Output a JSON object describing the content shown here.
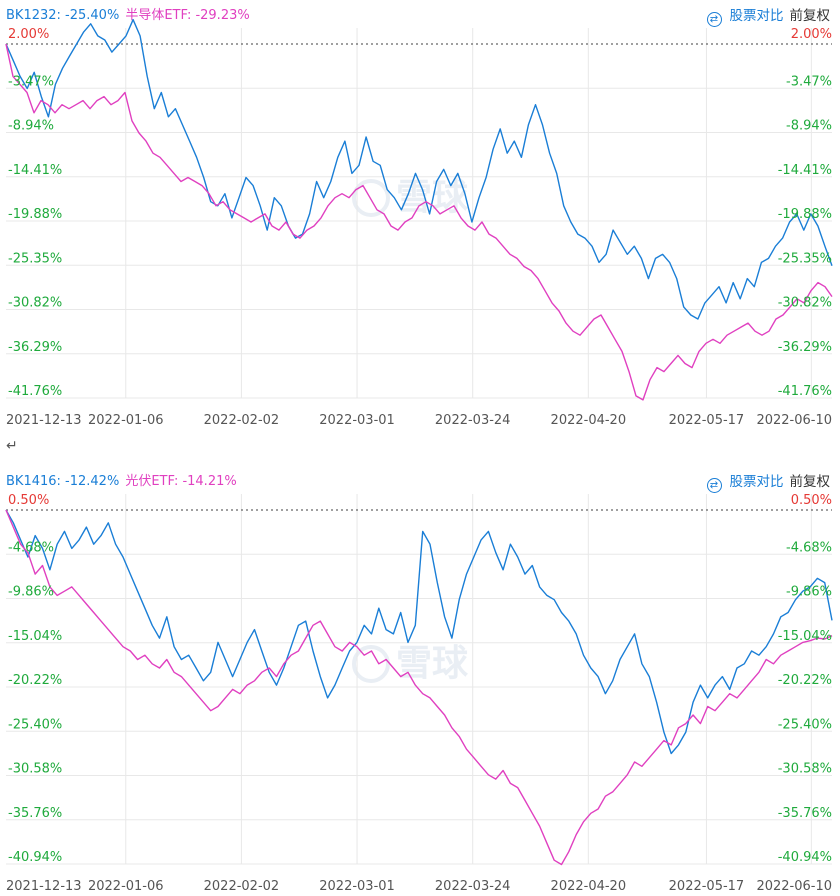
{
  "compare_label": "股票对比",
  "adjust_label": "前复权",
  "return_glyph": "↵",
  "watermark": "雪球",
  "colors": {
    "series1": "#1a7ed6",
    "series2": "#e040c0",
    "up": "#e53935",
    "down": "#1faa3c",
    "grid": "#e8e8e8",
    "baseline": "#666666"
  },
  "icons": {
    "compare": "swap-icon"
  },
  "chart_data": [
    {
      "type": "line",
      "legend": [
        {
          "name": "BK1232",
          "value": "-25.40%"
        },
        {
          "name": "半导体ETF",
          "value": "-29.23%"
        }
      ],
      "yticks": [
        "2.00%",
        "-3.47%",
        "-8.94%",
        "-14.41%",
        "-19.88%",
        "-25.35%",
        "-30.82%",
        "-36.29%",
        "-41.76%"
      ],
      "ylim": [
        -41.76,
        2.0
      ],
      "xticks": [
        "2021-12-13",
        "2022-01-06",
        "2022-02-02",
        "2022-03-01",
        "2022-03-24",
        "2022-04-20",
        "2022-05-17",
        "2022-06-10"
      ],
      "series": [
        {
          "name": "BK1232",
          "key": "s1",
          "values": [
            2.0,
            0.0,
            -2.0,
            -3.5,
            -1.5,
            -4.5,
            -7.0,
            -3.0,
            -1.0,
            0.5,
            2.0,
            3.5,
            4.5,
            3.0,
            2.5,
            1.0,
            2.0,
            3.0,
            5.0,
            3.0,
            -2.0,
            -6.0,
            -4.0,
            -7.0,
            -6.0,
            -8.0,
            -10.0,
            -12.0,
            -14.5,
            -17.5,
            -18.0,
            -16.5,
            -19.5,
            -17.0,
            -14.5,
            -15.5,
            -18.0,
            -21.0,
            -17.0,
            -18.0,
            -20.5,
            -22.0,
            -21.5,
            -19.0,
            -15.0,
            -17.0,
            -15.0,
            -12.0,
            -10.0,
            -14.0,
            -13.0,
            -9.5,
            -12.5,
            -13.0,
            -16.0,
            -17.0,
            -18.5,
            -16.5,
            -14.0,
            -16.0,
            -19.0,
            -15.0,
            -13.5,
            -15.5,
            -14.0,
            -16.5,
            -20.0,
            -17.0,
            -14.5,
            -11.0,
            -8.5,
            -11.5,
            -10.0,
            -12.0,
            -8.0,
            -5.5,
            -8.0,
            -11.5,
            -14.0,
            -18.0,
            -20.0,
            -21.5,
            -22.0,
            -23.0,
            -25.0,
            -24.0,
            -21.0,
            -22.5,
            -24.0,
            -23.0,
            -24.5,
            -27.0,
            -24.5,
            -24.0,
            -25.0,
            -27.0,
            -30.5,
            -31.5,
            -32.0,
            -30.0,
            -29.0,
            -28.0,
            -30.0,
            -27.5,
            -29.5,
            -27.0,
            -28.0,
            -25.0,
            -24.5,
            -23.0,
            -22.0,
            -20.0,
            -19.0,
            -21.0,
            -19.0,
            -20.5,
            -23.0,
            -25.4
          ]
        },
        {
          "name": "半导体ETF",
          "key": "s2",
          "values": [
            2.0,
            -2.0,
            -3.0,
            -4.0,
            -6.5,
            -5.0,
            -5.5,
            -6.5,
            -5.5,
            -6.0,
            -5.5,
            -5.0,
            -6.0,
            -5.0,
            -4.5,
            -5.5,
            -5.0,
            -4.0,
            -7.5,
            -9.0,
            -10.0,
            -11.5,
            -12.0,
            -13.0,
            -14.0,
            -15.0,
            -14.5,
            -15.0,
            -15.5,
            -16.5,
            -18.0,
            -17.5,
            -18.5,
            -19.0,
            -19.5,
            -20.0,
            -19.5,
            -19.0,
            -20.5,
            -21.0,
            -20.0,
            -21.5,
            -22.0,
            -21.0,
            -20.5,
            -19.5,
            -18.0,
            -17.0,
            -16.5,
            -17.0,
            -16.0,
            -15.5,
            -17.0,
            -18.5,
            -19.0,
            -20.5,
            -21.0,
            -20.0,
            -19.5,
            -18.0,
            -17.5,
            -18.0,
            -19.0,
            -18.5,
            -18.0,
            -19.5,
            -20.5,
            -21.0,
            -20.0,
            -21.5,
            -22.0,
            -23.0,
            -24.0,
            -24.5,
            -25.5,
            -26.0,
            -27.0,
            -28.5,
            -30.0,
            -31.0,
            -32.5,
            -33.5,
            -34.0,
            -33.0,
            -32.0,
            -31.5,
            -33.0,
            -34.5,
            -36.0,
            -38.5,
            -41.5,
            -42.0,
            -39.5,
            -38.0,
            -38.5,
            -37.5,
            -36.5,
            -37.5,
            -38.0,
            -36.0,
            -35.0,
            -34.5,
            -35.0,
            -34.0,
            -33.5,
            -33.0,
            -32.5,
            -33.5,
            -34.0,
            -33.5,
            -32.0,
            -31.5,
            -30.5,
            -29.5,
            -30.0,
            -28.5,
            -27.5,
            -28.0,
            -29.23
          ]
        }
      ]
    },
    {
      "type": "line",
      "legend": [
        {
          "name": "BK1416",
          "value": "-12.42%"
        },
        {
          "name": "光伏ETF",
          "value": "-14.21%"
        }
      ],
      "yticks": [
        "0.50%",
        "-4.68%",
        "-9.86%",
        "-15.04%",
        "-20.22%",
        "-25.40%",
        "-30.58%",
        "-35.76%",
        "-40.94%"
      ],
      "ylim": [
        -40.94,
        0.5
      ],
      "xticks": [
        "2021-12-13",
        "2022-01-06",
        "2022-02-02",
        "2022-03-01",
        "2022-03-24",
        "2022-04-20",
        "2022-05-17",
        "2022-06-10"
      ],
      "series": [
        {
          "name": "BK1416",
          "key": "s1",
          "values": [
            0.5,
            -1.0,
            -3.0,
            -5.0,
            -2.5,
            -4.0,
            -6.5,
            -3.5,
            -2.0,
            -4.0,
            -3.0,
            -1.5,
            -3.5,
            -2.5,
            -1.0,
            -3.5,
            -5.0,
            -7.0,
            -9.0,
            -11.0,
            -13.0,
            -14.5,
            -12.0,
            -15.5,
            -17.0,
            -16.5,
            -18.0,
            -19.5,
            -18.5,
            -15.0,
            -17.0,
            -19.0,
            -17.0,
            -15.0,
            -13.5,
            -16.0,
            -18.5,
            -20.0,
            -18.0,
            -15.5,
            -13.0,
            -12.5,
            -16.0,
            -19.0,
            -21.5,
            -20.0,
            -18.0,
            -16.0,
            -15.0,
            -13.0,
            -14.0,
            -11.0,
            -13.5,
            -14.0,
            -11.5,
            -15.0,
            -13.0,
            -2.0,
            -3.5,
            -8.0,
            -12.0,
            -14.5,
            -10.0,
            -7.0,
            -5.0,
            -3.0,
            -2.0,
            -4.5,
            -6.5,
            -3.5,
            -5.0,
            -7.0,
            -6.0,
            -8.5,
            -9.5,
            -10.0,
            -11.5,
            -12.5,
            -14.0,
            -16.5,
            -18.0,
            -19.0,
            -21.0,
            -19.5,
            -17.0,
            -15.5,
            -14.0,
            -17.5,
            -19.0,
            -22.0,
            -25.5,
            -28.0,
            -27.0,
            -25.5,
            -22.0,
            -20.0,
            -21.5,
            -20.0,
            -19.0,
            -20.5,
            -18.0,
            -17.5,
            -16.0,
            -16.5,
            -15.5,
            -14.0,
            -12.0,
            -11.5,
            -10.0,
            -9.0,
            -8.5,
            -7.5,
            -8.0,
            -12.42
          ]
        },
        {
          "name": "光伏ETF",
          "key": "s2",
          "values": [
            0.5,
            -1.5,
            -3.5,
            -4.5,
            -7.0,
            -6.0,
            -8.5,
            -9.5,
            -9.0,
            -8.5,
            -9.5,
            -10.5,
            -11.5,
            -12.5,
            -13.5,
            -14.5,
            -15.5,
            -16.0,
            -17.0,
            -16.5,
            -17.5,
            -18.0,
            -17.0,
            -18.5,
            -19.0,
            -20.0,
            -21.0,
            -22.0,
            -23.0,
            -22.5,
            -21.5,
            -20.5,
            -21.0,
            -20.0,
            -19.5,
            -18.5,
            -18.0,
            -19.0,
            -17.5,
            -16.5,
            -16.0,
            -14.5,
            -13.0,
            -12.5,
            -14.0,
            -15.5,
            -16.0,
            -15.0,
            -15.5,
            -16.5,
            -16.0,
            -17.5,
            -17.0,
            -18.0,
            -19.0,
            -18.5,
            -20.0,
            -21.0,
            -21.5,
            -22.5,
            -23.5,
            -25.0,
            -26.0,
            -27.5,
            -28.5,
            -29.5,
            -30.5,
            -31.0,
            -30.0,
            -31.5,
            -32.0,
            -33.5,
            -35.0,
            -36.5,
            -38.5,
            -40.5,
            -41.0,
            -39.5,
            -37.5,
            -36.0,
            -35.0,
            -34.5,
            -33.0,
            -32.5,
            -31.5,
            -30.5,
            -29.0,
            -29.5,
            -28.5,
            -27.5,
            -26.5,
            -27.0,
            -25.0,
            -24.5,
            -23.5,
            -24.5,
            -22.5,
            -23.0,
            -22.0,
            -21.0,
            -21.5,
            -20.5,
            -19.5,
            -18.5,
            -17.0,
            -17.5,
            -16.5,
            -16.0,
            -15.5,
            -15.0,
            -14.8,
            -14.5,
            -14.6,
            -14.21
          ]
        }
      ]
    }
  ]
}
